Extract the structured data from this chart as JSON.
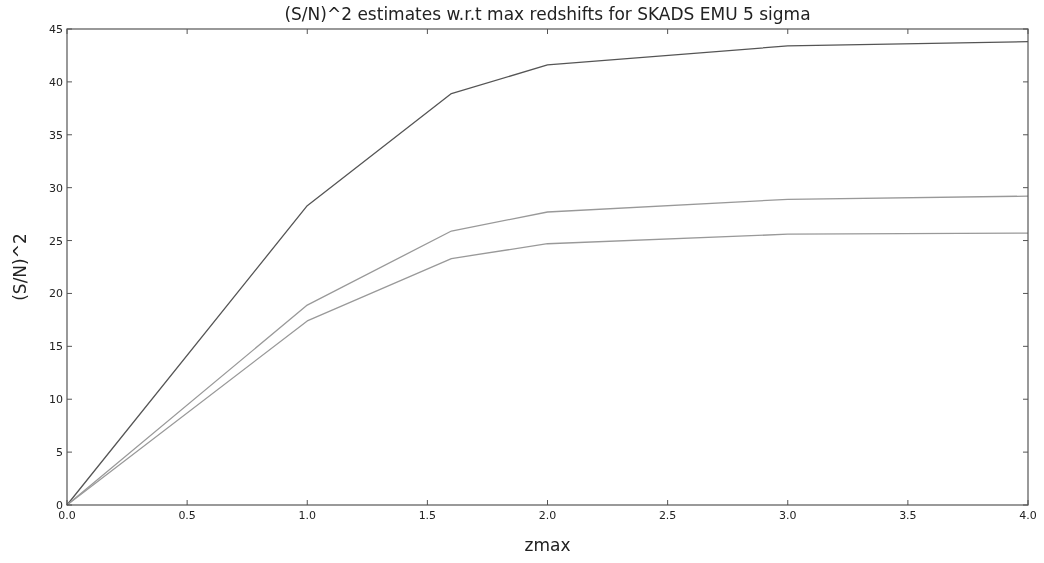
{
  "chart_data": {
    "type": "line",
    "title": "(S/N)^2 estimates w.r.t max redshifts for SKADS EMU 5 sigma",
    "xlabel": "zmax",
    "ylabel": "(S/N)^2",
    "x": [
      0,
      1,
      1.6,
      2,
      3,
      4
    ],
    "series": [
      {
        "color": "#555555",
        "values": [
          0,
          28.3,
          38.9,
          41.6,
          43.4,
          43.8
        ]
      },
      {
        "color": "#999999",
        "values": [
          0,
          18.9,
          25.9,
          27.7,
          28.9,
          29.2
        ]
      },
      {
        "color": "#999999",
        "values": [
          0,
          17.4,
          23.3,
          24.7,
          25.6,
          25.7
        ]
      }
    ],
    "xlim": [
      0,
      4
    ],
    "xticks": [
      {
        "value": 0,
        "label": "0.0"
      },
      {
        "value": 0.5,
        "label": "0.5"
      },
      {
        "value": 1,
        "label": "1.0"
      },
      {
        "value": 1.5,
        "label": "1.5"
      },
      {
        "value": 2,
        "label": "2.0"
      },
      {
        "value": 2.5,
        "label": "2.5"
      },
      {
        "value": 3,
        "label": "3.0"
      },
      {
        "value": 3.5,
        "label": "3.5"
      },
      {
        "value": 4,
        "label": "4.0"
      }
    ],
    "ylim": [
      0,
      45
    ],
    "yticks": [
      0,
      5,
      10,
      15,
      20,
      25,
      30,
      35,
      40,
      45
    ],
    "grid": false,
    "marker": "none",
    "line_style": "solid"
  }
}
